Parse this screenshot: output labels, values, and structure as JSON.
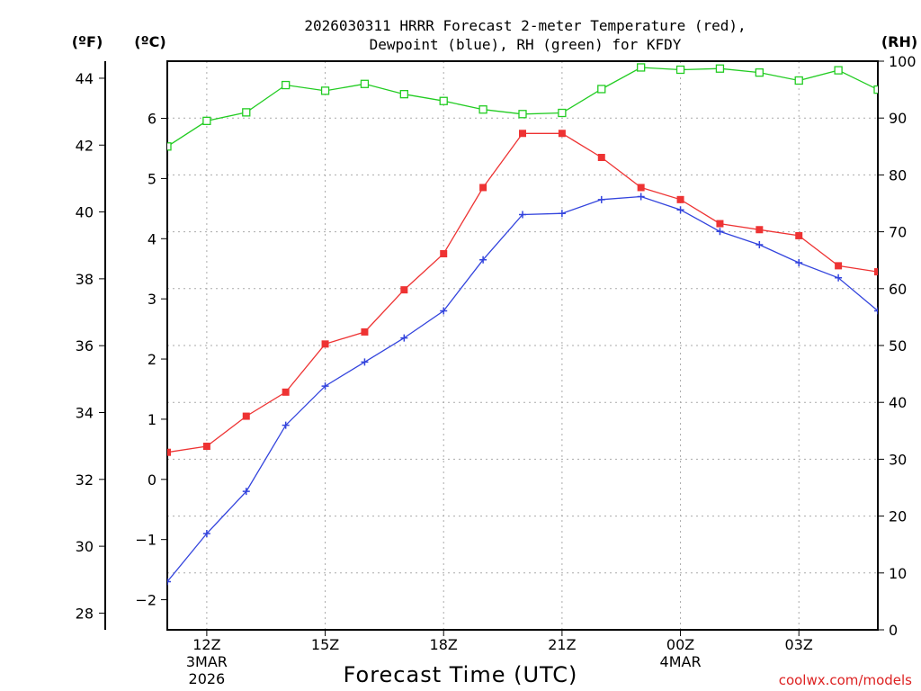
{
  "chart_data": {
    "type": "line",
    "title_line1": "2026030311 HRRR Forecast 2-meter Temperature (red),",
    "title_line2": "Dewpoint (blue), RH (green) for KFDY",
    "xlabel": "Forecast Time (UTC)",
    "credit": "coolwx.com/models",
    "units": {
      "fahrenheit": "(ºF)",
      "celsius": "(ºC)",
      "rh": "(RH)"
    },
    "x_hours": [
      11,
      12,
      13,
      14,
      15,
      16,
      17,
      18,
      19,
      20,
      21,
      22,
      23,
      24,
      25,
      26,
      27,
      28,
      29
    ],
    "xlim": [
      11,
      29
    ],
    "x_ticks": [
      {
        "hour": 12,
        "label": "12Z",
        "sub1": "3MAR",
        "sub2": "2026"
      },
      {
        "hour": 15,
        "label": "15Z"
      },
      {
        "hour": 18,
        "label": "18Z"
      },
      {
        "hour": 21,
        "label": "21Z"
      },
      {
        "hour": 24,
        "label": "00Z",
        "sub1": "4MAR"
      },
      {
        "hour": 27,
        "label": "03Z"
      }
    ],
    "ylim_c": [
      -2.5,
      6.95
    ],
    "y_ticks_c": [
      "-2",
      "-1",
      "0",
      "1",
      "2",
      "3",
      "4",
      "5",
      "6"
    ],
    "y_ticks_f": [
      "28",
      "30",
      "32",
      "34",
      "36",
      "38",
      "40",
      "42",
      "44"
    ],
    "ylim_rh": [
      0,
      100
    ],
    "y_ticks_rh": [
      "0",
      "10",
      "20",
      "30",
      "40",
      "50",
      "60",
      "70",
      "80",
      "90",
      "100"
    ],
    "series": [
      {
        "name": "Temperature",
        "unit": "C",
        "color": "#ee3333",
        "marker": "filled-square",
        "values": [
          0.45,
          0.55,
          1.05,
          1.45,
          2.25,
          2.45,
          3.15,
          3.75,
          4.85,
          5.75,
          5.75,
          5.35,
          4.85,
          4.65,
          4.25,
          4.15,
          4.05,
          3.55,
          3.45
        ]
      },
      {
        "name": "Dewpoint",
        "unit": "C",
        "color": "#3344dd",
        "marker": "plus",
        "values": [
          -1.7,
          -0.9,
          -0.2,
          0.9,
          1.55,
          1.95,
          2.35,
          2.8,
          3.65,
          4.4,
          4.42,
          4.65,
          4.7,
          4.48,
          4.12,
          3.9,
          3.6,
          3.35,
          2.8
        ]
      },
      {
        "name": "RH",
        "unit": "%",
        "color": "#22cc22",
        "marker": "open-square",
        "values": [
          85.0,
          89.5,
          91.0,
          95.8,
          94.8,
          96.0,
          94.2,
          93.0,
          91.5,
          90.7,
          90.9,
          95.1,
          98.9,
          98.5,
          98.7,
          98.0,
          96.6,
          98.4,
          95.0
        ]
      }
    ]
  }
}
